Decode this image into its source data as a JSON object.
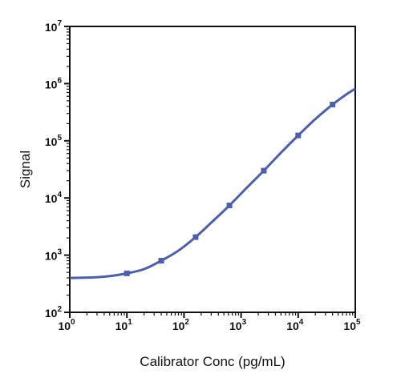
{
  "chart_data": {
    "type": "line",
    "title": "",
    "xlabel": "Calibrator Conc (pg/mL)",
    "ylabel": "Signal",
    "xscale": "log",
    "yscale": "log",
    "xlim": [
      1,
      100000
    ],
    "ylim": [
      100,
      10000000
    ],
    "grid": false,
    "legend": "none",
    "x_ticks": [
      {
        "base": "10",
        "exp": "0"
      },
      {
        "base": "10",
        "exp": "1"
      },
      {
        "base": "10",
        "exp": "2"
      },
      {
        "base": "10",
        "exp": "3"
      },
      {
        "base": "10",
        "exp": "4"
      },
      {
        "base": "10",
        "exp": "5"
      }
    ],
    "y_ticks": [
      {
        "base": "10",
        "exp": "2"
      },
      {
        "base": "10",
        "exp": "3"
      },
      {
        "base": "10",
        "exp": "4"
      },
      {
        "base": "10",
        "exp": "5"
      },
      {
        "base": "10",
        "exp": "6"
      },
      {
        "base": "10",
        "exp": "7"
      }
    ],
    "color": "#4a5fb0",
    "series": [
      {
        "points": [
          {
            "x": 10,
            "y": 480
          },
          {
            "x": 40,
            "y": 800
          },
          {
            "x": 160,
            "y": 2070
          },
          {
            "x": 625,
            "y": 7400
          },
          {
            "x": 2500,
            "y": 30000
          },
          {
            "x": 10000,
            "y": 124000
          },
          {
            "x": 40000,
            "y": 430000
          }
        ],
        "fit_curve": [
          {
            "x": 1,
            "y": 398
          },
          {
            "x": 2,
            "y": 405
          },
          {
            "x": 3,
            "y": 412
          },
          {
            "x": 5,
            "y": 430
          },
          {
            "x": 10,
            "y": 480
          },
          {
            "x": 20,
            "y": 570
          },
          {
            "x": 40,
            "y": 800
          },
          {
            "x": 80,
            "y": 1200
          },
          {
            "x": 160,
            "y": 2070
          },
          {
            "x": 300,
            "y": 3700
          },
          {
            "x": 625,
            "y": 7400
          },
          {
            "x": 1250,
            "y": 15000
          },
          {
            "x": 2500,
            "y": 30000
          },
          {
            "x": 5000,
            "y": 62000
          },
          {
            "x": 10000,
            "y": 124000
          },
          {
            "x": 20000,
            "y": 240000
          },
          {
            "x": 40000,
            "y": 430000
          },
          {
            "x": 70000,
            "y": 650000
          },
          {
            "x": 100000,
            "y": 810000
          }
        ]
      }
    ]
  }
}
